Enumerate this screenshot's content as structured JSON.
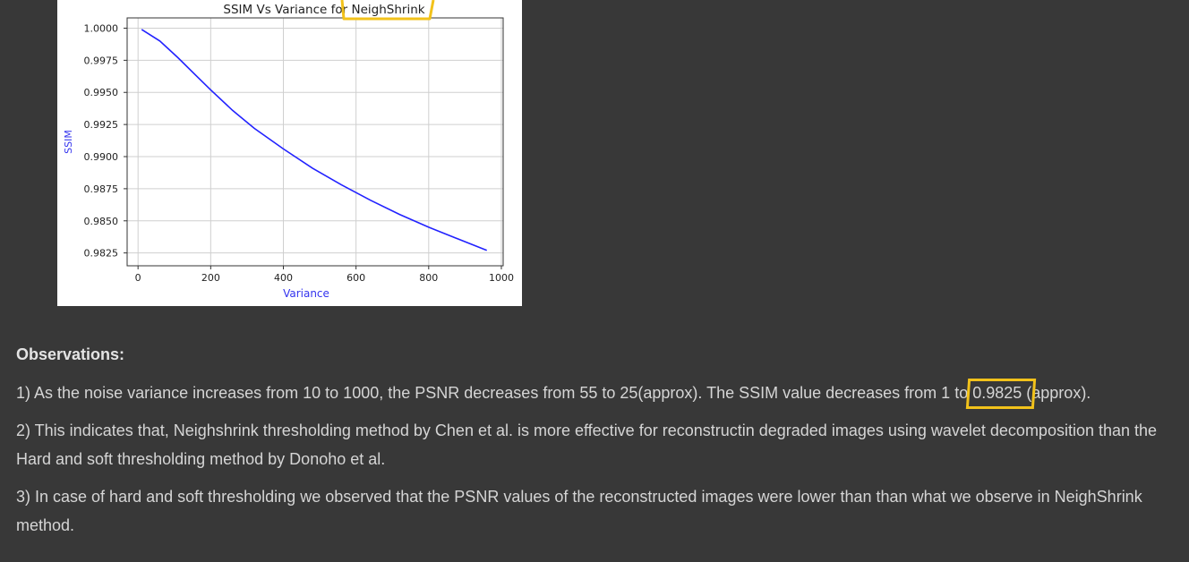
{
  "colors": {
    "page_background": "#383838",
    "text": "#d5d5d5",
    "line": "#2222ff",
    "annotation": "#f2c21b",
    "axis_label": "#3333ee"
  },
  "chart_data": {
    "type": "line",
    "title": "SSIM Vs Variance for NeighShrink",
    "xlabel": "Variance",
    "ylabel": "SSIM",
    "xlim": [
      -30,
      1005
    ],
    "ylim": [
      0.9815,
      1.0008
    ],
    "x_ticks": [
      0,
      200,
      400,
      600,
      800,
      1000
    ],
    "x_tick_labels": [
      "0",
      "200",
      "400",
      "600",
      "800",
      "1000"
    ],
    "y_ticks": [
      0.9825,
      0.985,
      0.9875,
      0.99,
      0.9925,
      0.995,
      0.9975,
      1.0
    ],
    "y_tick_labels": [
      "0.9825",
      "0.9850",
      "0.9875",
      "0.9900",
      "0.9925",
      "0.9950",
      "0.9975",
      "1.0000"
    ],
    "grid": true,
    "series": [
      {
        "color": "#2222ff",
        "x": [
          10,
          60,
          110,
          160,
          200,
          260,
          320,
          400,
          480,
          560,
          640,
          720,
          800,
          880,
          960
        ],
        "y": [
          0.9999,
          0.999,
          0.9977,
          0.9963,
          0.9952,
          0.9936,
          0.9922,
          0.9906,
          0.9891,
          0.9878,
          0.9866,
          0.9855,
          0.9845,
          0.9836,
          0.9827
        ]
      }
    ]
  },
  "observations": {
    "heading": "Observations:",
    "item1_prefix": "1) As the noise variance increases from 10 to 1000, the PSNR decreases from 55 to 25(approx). The SSIM value decreases from 1 to ",
    "item1_highlight": "0.9825",
    "item1_suffix": " (approx).",
    "item2": "2) This indicates that, Neighshrink thresholding method by Chen et al. is more effective for reconstructin degraded images using wavelet decomposition than the Hard and soft thresholding method by Donoho et al.",
    "item3": "3) In case of hard and soft thresholding we observed that the PSNR values of the reconstructed images were lower than than what we observe in NeighShrink method."
  }
}
